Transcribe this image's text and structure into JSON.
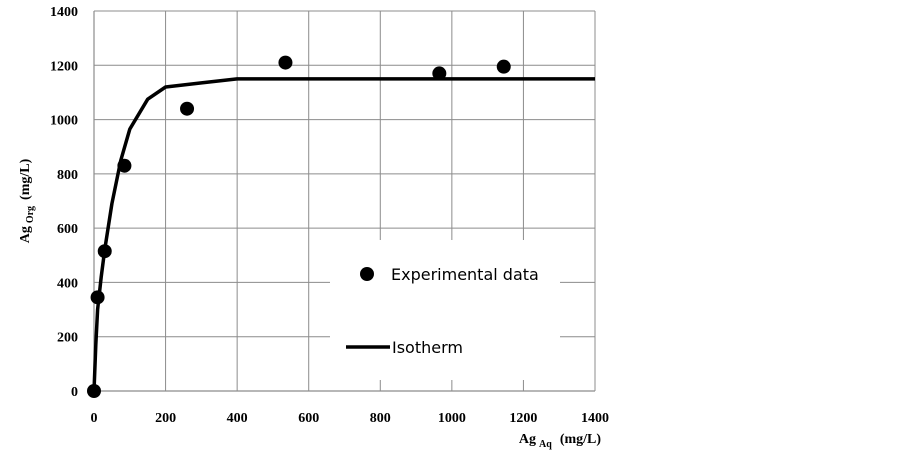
{
  "chart_data": {
    "type": "scatter",
    "xlim": [
      0,
      1400
    ],
    "ylim": [
      0,
      1400
    ],
    "x_ticks": [
      "0",
      "200",
      "400",
      "600",
      "800",
      "1000",
      "1200",
      "1400"
    ],
    "y_ticks": [
      "0",
      "200",
      "400",
      "600",
      "800",
      "1000",
      "1200",
      "1400"
    ],
    "grid": true,
    "legend_position": "lower-right",
    "xlabel": {
      "main": "Ag",
      "sub": "Aq",
      "unit": "(mg/L)"
    },
    "ylabel": {
      "main": "Ag",
      "sub": "Org",
      "unit": "(mg/L)"
    },
    "series": [
      {
        "name": "Experimental data",
        "kind": "markers",
        "color": "#000000",
        "points": [
          [
            0,
            0
          ],
          [
            10,
            345
          ],
          [
            30,
            515
          ],
          [
            85,
            830
          ],
          [
            260,
            1040
          ],
          [
            535,
            1210
          ],
          [
            965,
            1170
          ],
          [
            1145,
            1195
          ]
        ]
      },
      {
        "name": "Isotherm",
        "kind": "line",
        "color": "#000000",
        "points": [
          [
            0,
            0
          ],
          [
            5,
            170
          ],
          [
            10,
            300
          ],
          [
            20,
            420
          ],
          [
            30,
            520
          ],
          [
            50,
            690
          ],
          [
            75,
            850
          ],
          [
            100,
            965
          ],
          [
            150,
            1075
          ],
          [
            200,
            1120
          ],
          [
            300,
            1135
          ],
          [
            400,
            1150
          ],
          [
            600,
            1150
          ],
          [
            800,
            1150
          ],
          [
            1000,
            1150
          ],
          [
            1200,
            1150
          ],
          [
            1400,
            1150
          ]
        ]
      }
    ]
  }
}
